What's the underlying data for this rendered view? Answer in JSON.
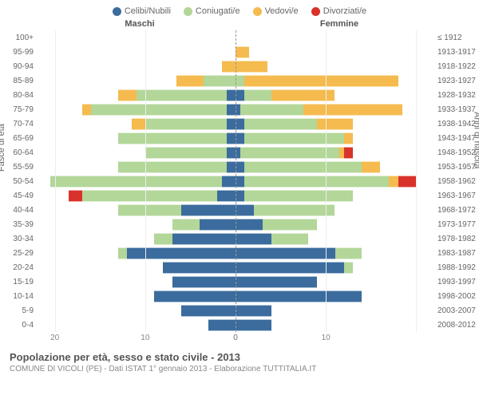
{
  "type": "population-pyramid",
  "legend": [
    {
      "label": "Celibi/Nubili",
      "color": "#3b6c9d"
    },
    {
      "label": "Coniugati/e",
      "color": "#b3d699"
    },
    {
      "label": "Vedovi/e",
      "color": "#f5bb4f"
    },
    {
      "label": "Divorziati/e",
      "color": "#d9322b"
    }
  ],
  "header_left": "Maschi",
  "header_right": "Femmine",
  "y_title_left": "Fasce di età",
  "y_title_right": "Anni di nascita",
  "x_max": 22,
  "x_ticks_left": [
    20,
    10,
    0
  ],
  "x_ticks_right": [
    0,
    10
  ],
  "title": "Popolazione per età, sesso e stato civile - 2013",
  "subtitle": "COMUNE DI VICOLI (PE) - Dati ISTAT 1° gennaio 2013 - Elaborazione TUTTITALIA.IT",
  "colors": {
    "celibi": "#3b6c9d",
    "coniugati": "#b3d699",
    "vedovi": "#f5bb4f",
    "divorziati": "#d9322b",
    "grid": "#eeeeee",
    "center_line": "#999999",
    "text": "#666666"
  },
  "rows": [
    {
      "age": "100+",
      "birth": "≤ 1912",
      "m": {
        "c": 0,
        "k": 0,
        "v": 0,
        "d": 0
      },
      "f": {
        "c": 0,
        "k": 0,
        "v": 0,
        "d": 0
      }
    },
    {
      "age": "95-99",
      "birth": "1913-1917",
      "m": {
        "c": 0,
        "k": 0,
        "v": 0,
        "d": 0
      },
      "f": {
        "c": 0,
        "k": 0,
        "v": 1.5,
        "d": 0
      }
    },
    {
      "age": "90-94",
      "birth": "1918-1922",
      "m": {
        "c": 0,
        "k": 0,
        "v": 1.5,
        "d": 0
      },
      "f": {
        "c": 0,
        "k": 0,
        "v": 3.5,
        "d": 0
      }
    },
    {
      "age": "85-89",
      "birth": "1923-1927",
      "m": {
        "c": 0,
        "k": 3.5,
        "v": 3,
        "d": 0
      },
      "f": {
        "c": 0,
        "k": 1,
        "v": 17,
        "d": 0
      }
    },
    {
      "age": "80-84",
      "birth": "1928-1932",
      "m": {
        "c": 1,
        "k": 10,
        "v": 2,
        "d": 0
      },
      "f": {
        "c": 1,
        "k": 3,
        "v": 7,
        "d": 0
      }
    },
    {
      "age": "75-79",
      "birth": "1933-1937",
      "m": {
        "c": 1,
        "k": 15,
        "v": 1,
        "d": 0
      },
      "f": {
        "c": 0.5,
        "k": 7,
        "v": 11,
        "d": 0
      }
    },
    {
      "age": "70-74",
      "birth": "1938-1942",
      "m": {
        "c": 1,
        "k": 9,
        "v": 1.5,
        "d": 0
      },
      "f": {
        "c": 1,
        "k": 8,
        "v": 4,
        "d": 0
      }
    },
    {
      "age": "65-69",
      "birth": "1943-1947",
      "m": {
        "c": 1,
        "k": 12,
        "v": 0,
        "d": 0
      },
      "f": {
        "c": 1,
        "k": 11,
        "v": 1,
        "d": 0
      }
    },
    {
      "age": "60-64",
      "birth": "1948-1952",
      "m": {
        "c": 1,
        "k": 9,
        "v": 0,
        "d": 0
      },
      "f": {
        "c": 0.5,
        "k": 11,
        "v": 0.5,
        "d": 1
      }
    },
    {
      "age": "55-59",
      "birth": "1953-1957",
      "m": {
        "c": 1,
        "k": 12,
        "v": 0,
        "d": 0
      },
      "f": {
        "c": 1,
        "k": 13,
        "v": 2,
        "d": 0
      }
    },
    {
      "age": "50-54",
      "birth": "1958-1962",
      "m": {
        "c": 1.5,
        "k": 19,
        "v": 0,
        "d": 0
      },
      "f": {
        "c": 1,
        "k": 16,
        "v": 1,
        "d": 2
      }
    },
    {
      "age": "45-49",
      "birth": "1963-1967",
      "m": {
        "c": 2,
        "k": 15,
        "v": 0,
        "d": 1.5
      },
      "f": {
        "c": 1,
        "k": 12,
        "v": 0,
        "d": 0
      }
    },
    {
      "age": "40-44",
      "birth": "1968-1972",
      "m": {
        "c": 6,
        "k": 7,
        "v": 0,
        "d": 0
      },
      "f": {
        "c": 2,
        "k": 9,
        "v": 0,
        "d": 0
      }
    },
    {
      "age": "35-39",
      "birth": "1973-1977",
      "m": {
        "c": 4,
        "k": 3,
        "v": 0,
        "d": 0
      },
      "f": {
        "c": 3,
        "k": 6,
        "v": 0,
        "d": 0
      }
    },
    {
      "age": "30-34",
      "birth": "1978-1982",
      "m": {
        "c": 7,
        "k": 2,
        "v": 0,
        "d": 0
      },
      "f": {
        "c": 4,
        "k": 4,
        "v": 0,
        "d": 0
      }
    },
    {
      "age": "25-29",
      "birth": "1983-1987",
      "m": {
        "c": 12,
        "k": 1,
        "v": 0,
        "d": 0
      },
      "f": {
        "c": 11,
        "k": 3,
        "v": 0,
        "d": 0
      }
    },
    {
      "age": "20-24",
      "birth": "1988-1992",
      "m": {
        "c": 8,
        "k": 0,
        "v": 0,
        "d": 0
      },
      "f": {
        "c": 12,
        "k": 1,
        "v": 0,
        "d": 0
      }
    },
    {
      "age": "15-19",
      "birth": "1993-1997",
      "m": {
        "c": 7,
        "k": 0,
        "v": 0,
        "d": 0
      },
      "f": {
        "c": 9,
        "k": 0,
        "v": 0,
        "d": 0
      }
    },
    {
      "age": "10-14",
      "birth": "1998-2002",
      "m": {
        "c": 9,
        "k": 0,
        "v": 0,
        "d": 0
      },
      "f": {
        "c": 14,
        "k": 0,
        "v": 0,
        "d": 0
      }
    },
    {
      "age": "5-9",
      "birth": "2003-2007",
      "m": {
        "c": 6,
        "k": 0,
        "v": 0,
        "d": 0
      },
      "f": {
        "c": 4,
        "k": 0,
        "v": 0,
        "d": 0
      }
    },
    {
      "age": "0-4",
      "birth": "2008-2012",
      "m": {
        "c": 3,
        "k": 0,
        "v": 0,
        "d": 0
      },
      "f": {
        "c": 4,
        "k": 0,
        "v": 0,
        "d": 0
      }
    }
  ]
}
